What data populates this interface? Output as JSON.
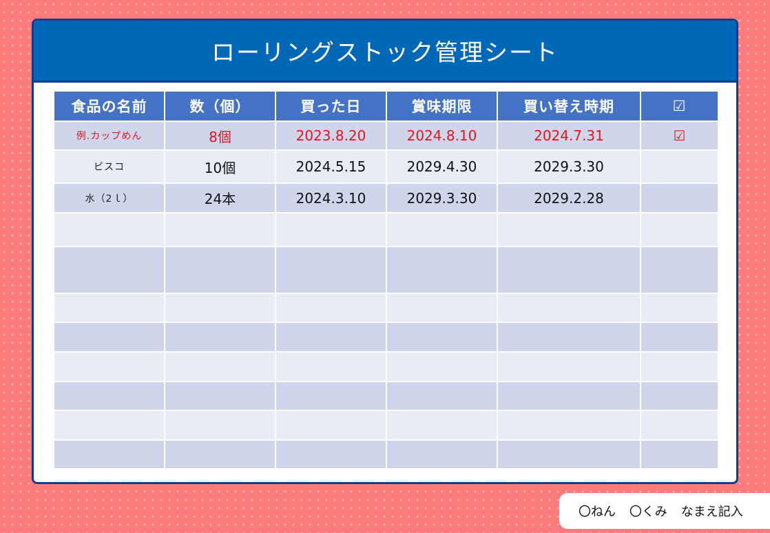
{
  "title": "ローリングストック管理シート",
  "headers": {
    "name": "食品の名前",
    "qty": "数（個）",
    "bought": "買った日",
    "expiry": "賞味期限",
    "replace": "買い替え時期",
    "check": "☑"
  },
  "rows": [
    {
      "name": "例.カップめん",
      "qty": "8個",
      "bought": "2023.8.20",
      "expiry": "2024.8.10",
      "replace": "2024.7.31",
      "check": "☑"
    },
    {
      "name": "ビスコ",
      "qty": "10個",
      "bought": "2024.5.15",
      "expiry": "2029.4.30",
      "replace": "2029.3.30",
      "check": ""
    },
    {
      "name": "水（2ｌ）",
      "qty": "24本",
      "bought": "2024.3.10",
      "expiry": "2029.3.30",
      "replace": "2029.2.28",
      "check": ""
    }
  ],
  "footer": {
    "year": "〇ねん",
    "class": "〇くみ",
    "name": "なまえ記入"
  },
  "colors": {
    "background": "#fb7a7a",
    "title_bar": "#0068b7",
    "header_row": "#4472c4",
    "row_dark": "#cfd5ea",
    "row_light": "#e9ebf5",
    "example_text": "#e8141b"
  }
}
